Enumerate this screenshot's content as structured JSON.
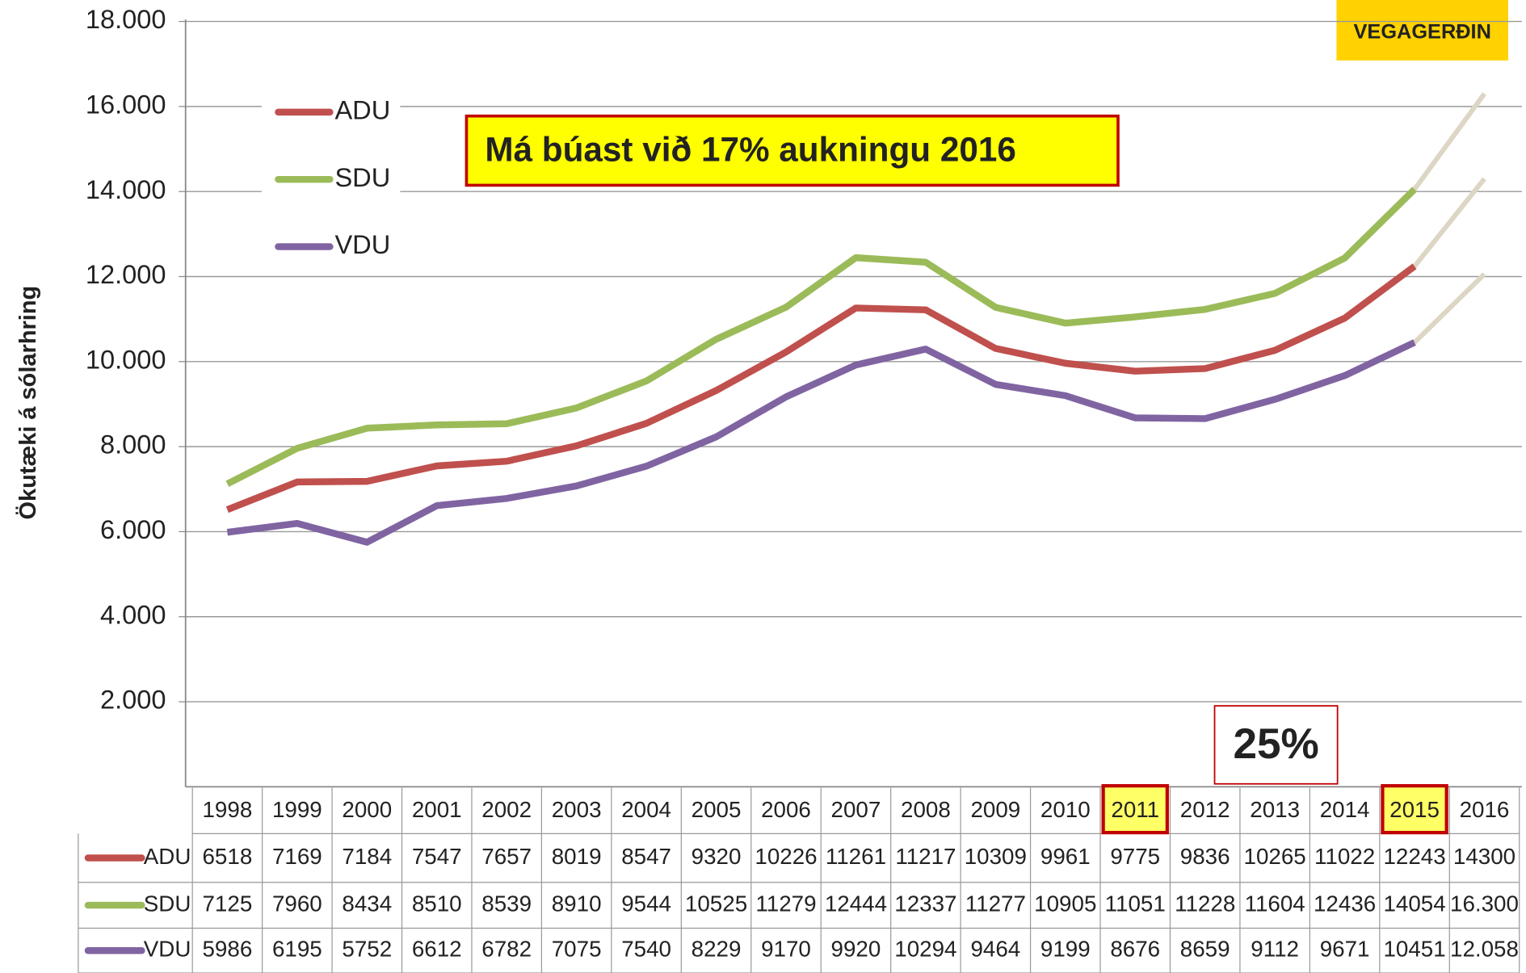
{
  "chart_data": {
    "type": "line",
    "y_axis_label": "Ökutæki á sólarhring",
    "annotations": [
      "Má búast við 17% aukningu 2016",
      "25%"
    ],
    "logo": "VEGAGERÐIN",
    "categories": [
      "1998",
      "1999",
      "2000",
      "2001",
      "2002",
      "2003",
      "2004",
      "2005",
      "2006",
      "2007",
      "2008",
      "2009",
      "2010",
      "2011",
      "2012",
      "2013",
      "2014",
      "2015",
      "2016"
    ],
    "highlight_categories": [
      "2011",
      "2015"
    ],
    "forecast_color": "#ddd6c4",
    "series": [
      {
        "name": "ADU",
        "color": "#c0504d",
        "values": [
          6518,
          7169,
          7184,
          7547,
          7657,
          8019,
          8547,
          9320,
          10226,
          11261,
          11217,
          10309,
          9961,
          9775,
          9836,
          10265,
          11022,
          12243,
          14300
        ]
      },
      {
        "name": "SDU",
        "color": "#9bbb59",
        "values": [
          7125,
          7960,
          8434,
          8510,
          8539,
          8910,
          9544,
          10525,
          11279,
          12444,
          12337,
          11277,
          10905,
          11051,
          11228,
          11604,
          12436,
          14054,
          16300
        ],
        "value_labels": [
          "7125",
          "7960",
          "8434",
          "8510",
          "8539",
          "8910",
          "9544",
          "10525",
          "11279",
          "12444",
          "12337",
          "11277",
          "10905",
          "11051",
          "11228",
          "11604",
          "12436",
          "14054",
          "16.300"
        ]
      },
      {
        "name": "VDU",
        "color": "#8064a2",
        "values": [
          5986,
          6195,
          5752,
          6612,
          6782,
          7075,
          7540,
          8229,
          9170,
          9920,
          10294,
          9464,
          9199,
          8676,
          8659,
          9112,
          9671,
          10451,
          12058
        ],
        "value_labels": [
          "5986",
          "6195",
          "5752",
          "6612",
          "6782",
          "7075",
          "7540",
          "8229",
          "9170",
          "9920",
          "10294",
          "9464",
          "9199",
          "8676",
          "8659",
          "9112",
          "9671",
          "10451",
          "12.058"
        ]
      }
    ],
    "ylim": [
      0,
      18000
    ],
    "yticks": [
      {
        "value": 2000,
        "label": "2.000"
      },
      {
        "value": 4000,
        "label": "4.000"
      },
      {
        "value": 6000,
        "label": "6.000"
      },
      {
        "value": 8000,
        "label": "8.000"
      },
      {
        "value": 10000,
        "label": "10.000"
      },
      {
        "value": 12000,
        "label": "12.000"
      },
      {
        "value": 14000,
        "label": "14.000"
      },
      {
        "value": 16000,
        "label": "16.000"
      },
      {
        "value": 18000,
        "label": "18.000"
      }
    ],
    "grid": true
  }
}
